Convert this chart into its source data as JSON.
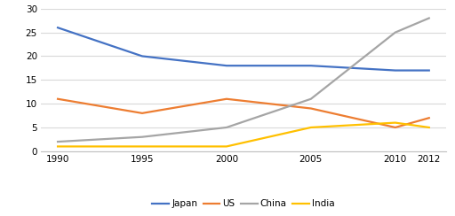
{
  "years": [
    1990,
    1995,
    2000,
    2005,
    2010,
    2012
  ],
  "japan": [
    26,
    20,
    18,
    18,
    17,
    17
  ],
  "us": [
    11,
    8,
    11,
    9,
    5,
    7
  ],
  "china": [
    2,
    3,
    5,
    11,
    25,
    28
  ],
  "india": [
    1,
    1,
    1,
    5,
    6,
    5
  ],
  "colors": {
    "japan": "#4472C4",
    "us": "#ED7D31",
    "china": "#A5A5A5",
    "india": "#FFC000"
  },
  "legend_labels": [
    "Japan",
    "US",
    "China",
    "India"
  ],
  "ylim": [
    0,
    30
  ],
  "yticks": [
    0,
    5,
    10,
    15,
    20,
    25,
    30
  ],
  "xticks": [
    1990,
    1995,
    2000,
    2005,
    2010,
    2012
  ],
  "xlim_left": 1989,
  "xlim_right": 2013,
  "bg_color": "#ffffff",
  "grid_color": "#d9d9d9",
  "linewidth": 1.6,
  "tick_fontsize": 7.5,
  "legend_fontsize": 7.5
}
